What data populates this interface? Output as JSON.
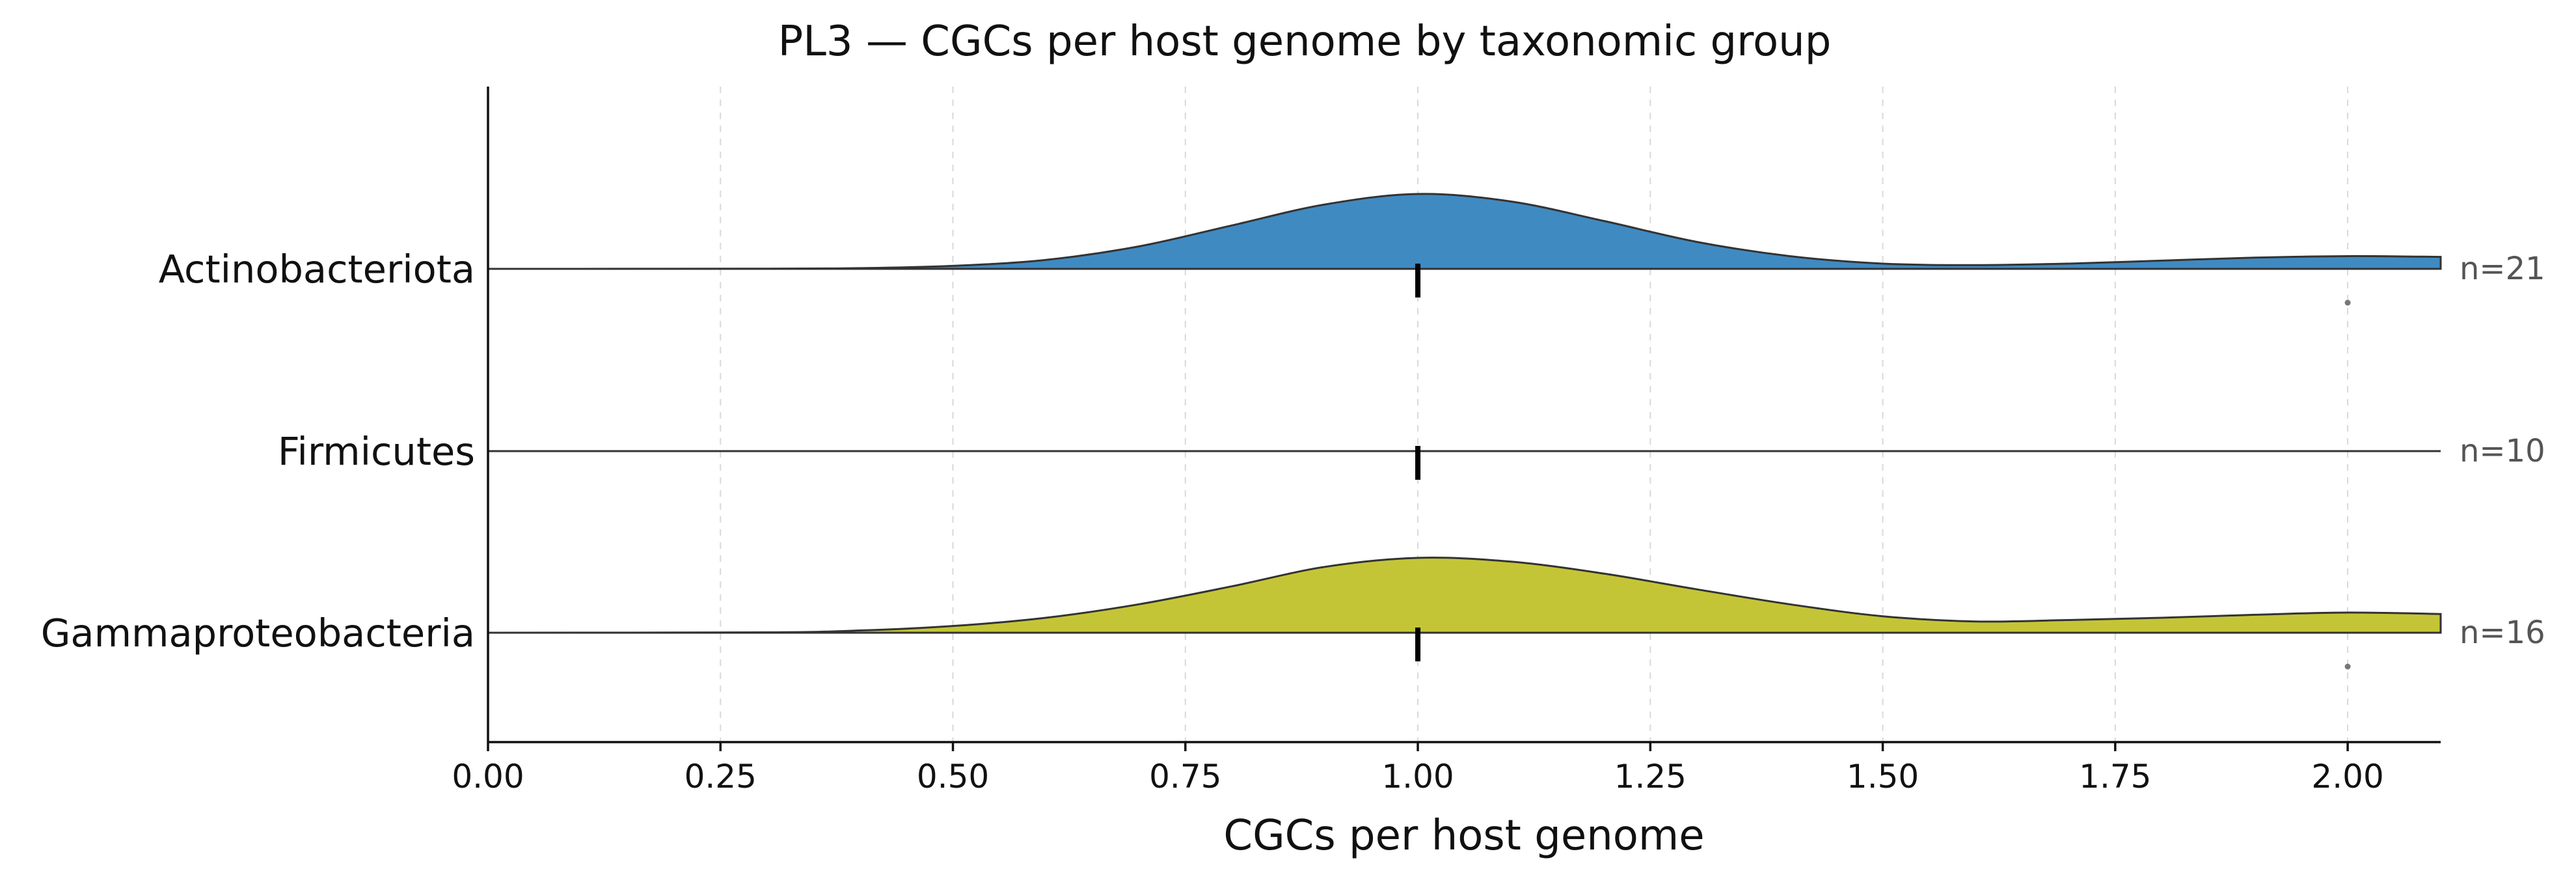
{
  "chart_data": {
    "type": "ridgeline",
    "title": "PL3 — CGCs per host genome by taxonomic group",
    "xlabel": "CGCs per host genome",
    "xlim": [
      0,
      2.1
    ],
    "xticks": [
      "0.00",
      "0.25",
      "0.50",
      "0.75",
      "1.00",
      "1.25",
      "1.50",
      "1.75",
      "2.00"
    ],
    "xtick_values": [
      0,
      0.25,
      0.5,
      0.75,
      1.0,
      1.25,
      1.5,
      1.75,
      2.0
    ],
    "grid": "vertical dashed",
    "groups": [
      {
        "name": "Actinobacteriota",
        "n_label": "n=21",
        "color": "#3a86c0",
        "median": 1.0,
        "outliers": [
          2.0
        ],
        "density": {
          "x": [
            0.0,
            0.3,
            0.4,
            0.5,
            0.6,
            0.7,
            0.8,
            0.9,
            1.0,
            1.1,
            1.2,
            1.3,
            1.4,
            1.5,
            1.6,
            1.7,
            1.8,
            1.9,
            2.0,
            2.1
          ],
          "y": [
            0.0,
            0.002,
            0.01,
            0.04,
            0.12,
            0.3,
            0.58,
            0.86,
            1.0,
            0.9,
            0.64,
            0.36,
            0.17,
            0.07,
            0.05,
            0.07,
            0.11,
            0.15,
            0.17,
            0.16
          ]
        }
      },
      {
        "name": "Firmicutes",
        "n_label": "n=10",
        "color": "#9e9e9e",
        "median": 1.0,
        "outliers": [],
        "density": {
          "x": [],
          "y": []
        }
      },
      {
        "name": "Gammaproteobacteria",
        "n_label": "n=16",
        "color": "#c2c330",
        "median": 1.0,
        "outliers": [
          2.0
        ],
        "density": {
          "x": [
            0.0,
            0.3,
            0.4,
            0.5,
            0.6,
            0.7,
            0.8,
            0.9,
            1.0,
            1.1,
            1.2,
            1.3,
            1.4,
            1.5,
            1.6,
            1.7,
            1.8,
            1.9,
            2.0,
            2.1
          ],
          "y": [
            0.0,
            0.005,
            0.03,
            0.09,
            0.2,
            0.38,
            0.62,
            0.88,
            1.0,
            0.95,
            0.79,
            0.58,
            0.38,
            0.22,
            0.15,
            0.17,
            0.2,
            0.24,
            0.27,
            0.25
          ]
        }
      }
    ]
  }
}
